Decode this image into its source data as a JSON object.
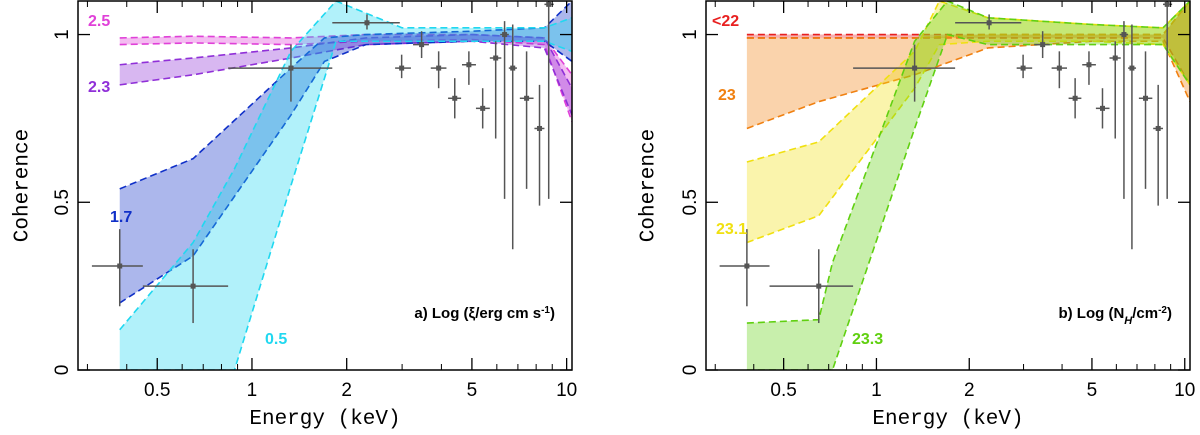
{
  "chart_data": [
    {
      "type": "band",
      "ylabel": "Coherence",
      "xlabel": "Energy (keV)",
      "annotation": [
        "a) Log (ξ/erg cm s",
        "-1",
        ")"
      ],
      "xscale": "log",
      "xlim": [
        0.28,
        10.4
      ],
      "ylim": [
        0,
        1.1
      ],
      "xticks": [
        0.5,
        1,
        2,
        5,
        10
      ],
      "xminorticks": [
        0.3,
        0.4,
        0.6,
        0.7,
        0.8,
        0.9,
        3,
        4,
        6,
        7,
        8,
        9
      ],
      "yticks": [
        0,
        0.5,
        1
      ],
      "series": [
        {
          "name": "2.5",
          "color": "#e040d8",
          "x": [
            0.38,
            0.65,
            1.33,
            2.3,
            5,
            8.5,
            10.4
          ],
          "lower": [
            0.97,
            0.975,
            0.97,
            0.98,
            0.985,
            0.97,
            0.74
          ],
          "upper": [
            0.99,
            0.995,
            0.99,
            1.0,
            1.0,
            0.99,
            0.88
          ]
        },
        {
          "name": "2.3",
          "color": "#9030d8",
          "x": [
            0.38,
            0.65,
            1.33,
            2.3,
            5,
            8.5,
            10.4
          ],
          "lower": [
            0.85,
            0.88,
            0.93,
            0.97,
            0.98,
            0.96,
            0.76
          ],
          "upper": [
            0.91,
            0.93,
            0.96,
            0.99,
            1.0,
            0.99,
            0.84
          ]
        },
        {
          "name": "1.7",
          "color": "#1030c8",
          "x": [
            0.38,
            0.65,
            1.33,
            1.7,
            2.3,
            5,
            8.5,
            10.4
          ],
          "lower": [
            0.2,
            0.34,
            0.76,
            0.92,
            0.97,
            0.98,
            0.98,
            0.92
          ],
          "upper": [
            0.54,
            0.63,
            0.9,
            0.99,
            1.0,
            1.01,
            1.02,
            1.1
          ]
        },
        {
          "name": "0.5",
          "color": "#20d8f0",
          "x": [
            0.38,
            0.65,
            0.88,
            1.33,
            1.85,
            3,
            8.5,
            10.4
          ],
          "lower": [
            0,
            0,
            0,
            0.55,
            0.98,
            0.98,
            0.98,
            0.95
          ],
          "upper": [
            0.12,
            0.38,
            0.6,
            0.95,
            1.1,
            1.02,
            1.02,
            1.05
          ]
        }
      ],
      "points": {
        "x": [
          0.38,
          0.65,
          1.33,
          2.32,
          2.99,
          3.46,
          3.92,
          4.41,
          4.89,
          5.41,
          5.95,
          6.35,
          6.74,
          7.46,
          8.2,
          8.77
        ],
        "xlow": [
          0.31,
          0.45,
          0.84,
          1.8,
          2.85,
          3.25,
          3.7,
          4.2,
          4.65,
          5.15,
          5.7,
          6.15,
          6.55,
          7.1,
          7.9,
          8.5
        ],
        "xhigh": [
          0.45,
          0.84,
          1.8,
          2.95,
          3.2,
          3.65,
          4.15,
          4.62,
          5.15,
          5.7,
          6.2,
          6.55,
          6.95,
          7.85,
          8.5,
          9.1
        ],
        "y": [
          0.31,
          0.25,
          0.9,
          1.035,
          0.9,
          0.97,
          0.9,
          0.81,
          0.91,
          0.78,
          0.93,
          1.0,
          0.9,
          0.81,
          0.72,
          1.09
        ],
        "ylow": [
          0.19,
          0.14,
          0.8,
          1.015,
          0.87,
          0.93,
          0.84,
          0.75,
          0.85,
          0.72,
          0.69,
          0.51,
          0.36,
          0.54,
          0.49,
          0.51
        ],
        "yhigh": [
          0.42,
          0.36,
          0.97,
          1.06,
          0.94,
          1.01,
          0.95,
          0.87,
          0.95,
          0.84,
          0.98,
          1.04,
          1.03,
          0.95,
          0.85,
          1.1
        ],
        "color": "#555555"
      }
    },
    {
      "type": "band",
      "ylabel": "Coherence",
      "xlabel": "Energy (keV)",
      "annotation": [
        "b) Log (N",
        "H",
        "/cm",
        "-2",
        ")"
      ],
      "xscale": "log",
      "xlim": [
        0.28,
        10.4
      ],
      "ylim": [
        0,
        1.1
      ],
      "xticks": [
        0.5,
        1,
        2,
        5,
        10
      ],
      "xminorticks": [
        0.3,
        0.4,
        0.6,
        0.7,
        0.8,
        0.9,
        3,
        4,
        6,
        7,
        8,
        9
      ],
      "yticks": [
        0,
        0.5,
        1
      ],
      "series": [
        {
          "name": "<22",
          "color": "#e82020",
          "x": [
            0.38,
            0.65,
            1.33,
            2.3,
            5,
            8.5,
            10.4
          ],
          "lower": [
            0.99,
            0.99,
            0.99,
            0.99,
            0.99,
            0.99,
            0.85
          ],
          "upper": [
            1.0,
            1.0,
            1.0,
            1.0,
            1.0,
            1.0,
            1.1
          ]
        },
        {
          "name": "23",
          "color": "#f08010",
          "x": [
            0.38,
            0.65,
            1.33,
            2.3,
            5,
            8.5,
            10.4
          ],
          "lower": [
            0.72,
            0.8,
            0.88,
            0.96,
            0.98,
            0.98,
            0.8
          ],
          "upper": [
            0.99,
            0.99,
            0.99,
            1.0,
            1.0,
            1.0,
            1.1
          ]
        },
        {
          "name": "23.1",
          "color": "#f0e010",
          "x": [
            0.38,
            0.65,
            1.33,
            1.6,
            2.3,
            5,
            8.5,
            10.4
          ],
          "lower": [
            0.38,
            0.46,
            0.84,
            0.97,
            0.98,
            0.98,
            0.97,
            0.85
          ],
          "upper": [
            0.62,
            0.68,
            0.95,
            1.1,
            1.05,
            1.03,
            1.02,
            1.1
          ]
        },
        {
          "name": "23.3",
          "color": "#60d010",
          "x": [
            0.38,
            0.65,
            0.72,
            1.33,
            1.7,
            2.3,
            5,
            8.5,
            10.4
          ],
          "lower": [
            0,
            0,
            0,
            0.72,
            1.0,
            0.97,
            0.97,
            0.97,
            0.85
          ],
          "upper": [
            0.14,
            0.15,
            0.32,
            0.98,
            1.1,
            1.05,
            1.03,
            1.02,
            1.1
          ]
        }
      ],
      "points": {
        "x": [
          0.38,
          0.65,
          1.33,
          2.32,
          2.99,
          3.46,
          3.92,
          4.41,
          4.89,
          5.41,
          5.95,
          6.35,
          6.74,
          7.46,
          8.2,
          8.77
        ],
        "xlow": [
          0.31,
          0.45,
          0.84,
          1.8,
          2.85,
          3.25,
          3.7,
          4.2,
          4.65,
          5.15,
          5.7,
          6.15,
          6.55,
          7.1,
          7.9,
          8.5
        ],
        "xhigh": [
          0.45,
          0.84,
          1.8,
          2.95,
          3.2,
          3.65,
          4.15,
          4.62,
          5.15,
          5.7,
          6.2,
          6.55,
          6.95,
          7.85,
          8.5,
          9.1
        ],
        "y": [
          0.31,
          0.25,
          0.9,
          1.035,
          0.9,
          0.97,
          0.9,
          0.81,
          0.91,
          0.78,
          0.93,
          1.0,
          0.9,
          0.81,
          0.72,
          1.09
        ],
        "ylow": [
          0.19,
          0.14,
          0.8,
          1.015,
          0.87,
          0.93,
          0.84,
          0.75,
          0.85,
          0.72,
          0.69,
          0.51,
          0.36,
          0.54,
          0.49,
          0.51
        ],
        "yhigh": [
          0.42,
          0.36,
          0.97,
          1.06,
          0.94,
          1.01,
          0.95,
          0.87,
          0.95,
          0.84,
          0.98,
          1.04,
          1.03,
          0.95,
          0.85,
          1.1
        ],
        "color": "#555555"
      }
    }
  ]
}
